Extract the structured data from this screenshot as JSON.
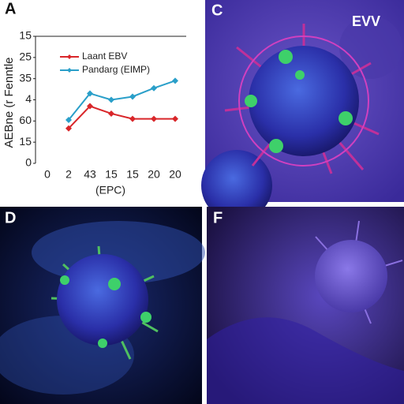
{
  "chart_data": {
    "type": "line",
    "title": "A",
    "x_label": "(EPC)",
    "y_label": "AEBne (r Fenntle",
    "categories": [
      "0",
      "2",
      "43",
      "15",
      "15",
      "20",
      "20"
    ],
    "ylim": [
      0,
      6
    ],
    "yticks": [
      {
        "value": 6,
        "label": "15"
      },
      {
        "value": 5,
        "label": "25"
      },
      {
        "value": 4,
        "label": "35"
      },
      {
        "value": 3,
        "label": "4"
      },
      {
        "value": 2,
        "label": "60"
      },
      {
        "value": 1,
        "label": "15"
      },
      {
        "value": 0,
        "label": "0"
      }
    ],
    "grid": false,
    "series": [
      {
        "name": "Laant EBV",
        "color": "#d9262a",
        "values": [
          null,
          1.65,
          2.7,
          2.35,
          2.1,
          2.1,
          2.1
        ]
      },
      {
        "name": "Pandarg (EIMP)",
        "color": "#2a9fc9",
        "values": [
          null,
          2.05,
          3.3,
          3.0,
          3.15,
          3.55,
          3.9
        ]
      }
    ]
  },
  "panels": [
    {
      "label": "C",
      "text": "EVV"
    },
    {
      "label": "D"
    },
    {
      "label": "F"
    }
  ]
}
